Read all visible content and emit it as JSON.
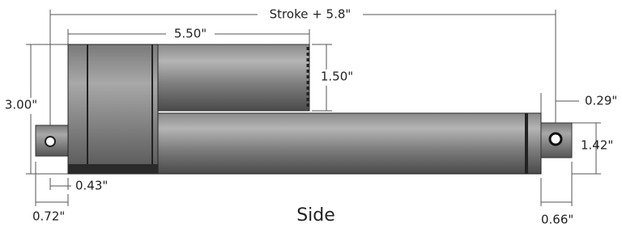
{
  "dimensions": [
    "Stroke + 5.8\"",
    "5.50\"",
    "1.50\"",
    "3.00\"",
    "0.29\"",
    "1.42\"",
    "0.43\"",
    "0.72\"",
    "0.66\""
  ],
  "caption": "Side"
}
